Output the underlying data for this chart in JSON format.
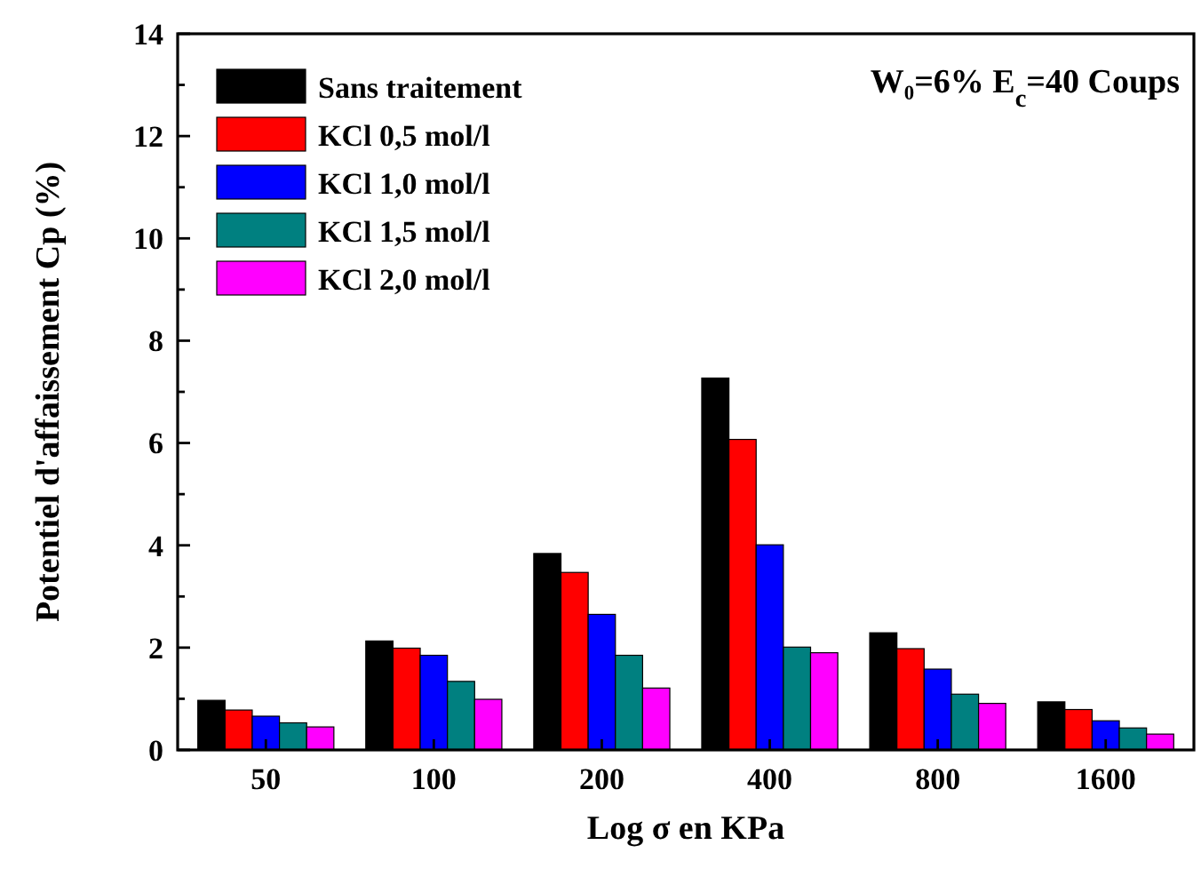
{
  "chart_data": {
    "type": "bar",
    "xlabel": "Log σ en KPa",
    "ylabel": "Potentiel d'affaissement Cp (%)",
    "categories": [
      "50",
      "100",
      "200",
      "400",
      "800",
      "1600"
    ],
    "series": [
      {
        "name": "Sans traitement",
        "color": "#000000",
        "values": [
          0.97,
          2.13,
          3.84,
          7.27,
          2.29,
          0.94
        ]
      },
      {
        "name": "KCl  0,5 mol/l",
        "color": "#ff0000",
        "values": [
          0.78,
          1.99,
          3.47,
          6.07,
          1.98,
          0.79
        ]
      },
      {
        "name": "KCl  1,0 mol/l",
        "color": "#0000ff",
        "values": [
          0.66,
          1.85,
          2.65,
          4.01,
          1.58,
          0.57
        ]
      },
      {
        "name": "KCl  1,5 mol/l",
        "color": "#008080",
        "values": [
          0.53,
          1.34,
          1.85,
          2.01,
          1.09,
          0.43
        ]
      },
      {
        "name": "KCl  2,0 mol/l",
        "color": "#ff00ff",
        "values": [
          0.45,
          0.99,
          1.21,
          1.9,
          0.91,
          0.31
        ]
      }
    ],
    "ylim": [
      0,
      14
    ],
    "yticks": [
      0,
      {
        "value": 1,
        "label": null
      },
      2,
      {
        "value": 3,
        "label": null
      },
      4,
      {
        "value": 5,
        "label": null
      },
      6,
      {
        "value": 7,
        "label": null
      },
      8,
      {
        "value": 9,
        "label": null
      },
      10,
      {
        "value": 11,
        "label": null
      },
      12,
      {
        "value": 13,
        "label": null
      },
      14
    ],
    "legend": "top left",
    "annotations": [
      "W₀=6% E$_{c}$=40 Coups"
    ]
  }
}
